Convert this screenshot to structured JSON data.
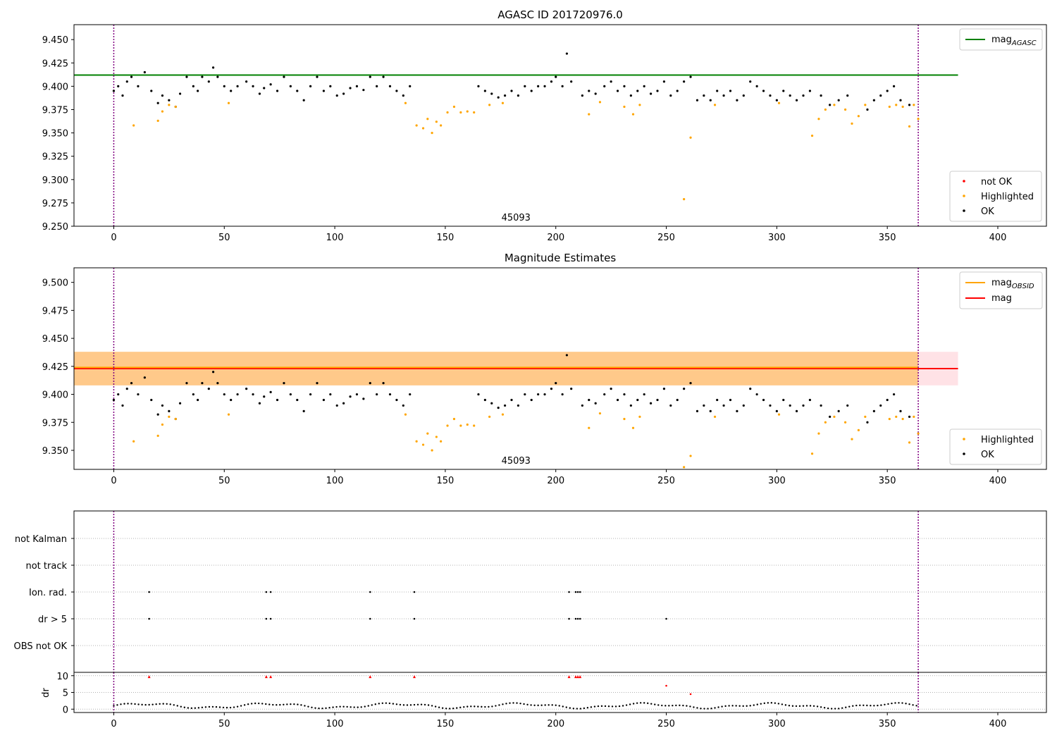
{
  "chart_data": [
    {
      "type": "scatter",
      "title": "AGASC ID 201720976.0",
      "xlim": [
        -18,
        422
      ],
      "ylim": [
        9.25,
        9.466
      ],
      "xticks": [
        0,
        50,
        100,
        150,
        200,
        250,
        300,
        350,
        400
      ],
      "yticks": [
        9.25,
        9.275,
        9.3,
        9.325,
        9.35,
        9.375,
        9.4,
        9.425,
        9.45
      ],
      "ytick_decimals": 3,
      "vlines": [
        0,
        364
      ],
      "hlines": [
        {
          "name": "mag_AGASC",
          "value": 9.412,
          "color": "#008000",
          "xmax": 382
        }
      ],
      "annotation": {
        "text": "45093",
        "x": 182
      },
      "legend_lines": [
        {
          "label": "mag",
          "sub": "AGASC",
          "color": "#008000"
        }
      ],
      "legend_points": [
        {
          "label": "not OK",
          "color": "#ff0000"
        },
        {
          "label": "Highlighted",
          "color": "#ffa500"
        },
        {
          "label": "OK",
          "color": "#000000"
        }
      ],
      "series": [
        {
          "name": "OK",
          "color": "#000000",
          "x": [
            0,
            2,
            4,
            6,
            8,
            11,
            14,
            17,
            20,
            22,
            25,
            28,
            30,
            33,
            36,
            38,
            40,
            43,
            45,
            47,
            50,
            53,
            56,
            60,
            63,
            66,
            68,
            71,
            74,
            77,
            80,
            83,
            86,
            89,
            92,
            95,
            98,
            101,
            104,
            107,
            110,
            113,
            116,
            119,
            122,
            125,
            128,
            131,
            134,
            165,
            168,
            171,
            174,
            177,
            180,
            183,
            186,
            189,
            192,
            195,
            198,
            200,
            203,
            205,
            207,
            212,
            215,
            218,
            222,
            225,
            228,
            231,
            234,
            237,
            240,
            243,
            246,
            249,
            252,
            255,
            258,
            261,
            264,
            267,
            270,
            273,
            276,
            279,
            282,
            285,
            288,
            291,
            294,
            297,
            300,
            303,
            306,
            309,
            312,
            315,
            320,
            324,
            328,
            332,
            341,
            344,
            347,
            350,
            353,
            356,
            360
          ],
          "y": [
            9.395,
            9.4,
            9.39,
            9.405,
            9.41,
            9.4,
            9.415,
            9.395,
            9.382,
            9.39,
            9.385,
            9.378,
            9.392,
            9.41,
            9.4,
            9.395,
            9.41,
            9.405,
            9.42,
            9.41,
            9.4,
            9.395,
            9.4,
            9.405,
            9.4,
            9.392,
            9.398,
            9.402,
            9.395,
            9.41,
            9.4,
            9.395,
            9.385,
            9.4,
            9.41,
            9.395,
            9.4,
            9.39,
            9.392,
            9.398,
            9.4,
            9.396,
            9.41,
            9.4,
            9.41,
            9.4,
            9.395,
            9.39,
            9.4,
            9.4,
            9.395,
            9.392,
            9.388,
            9.39,
            9.395,
            9.39,
            9.4,
            9.395,
            9.4,
            9.4,
            9.405,
            9.41,
            9.4,
            9.435,
            9.405,
            9.39,
            9.395,
            9.392,
            9.4,
            9.405,
            9.395,
            9.4,
            9.39,
            9.395,
            9.4,
            9.392,
            9.395,
            9.405,
            9.39,
            9.395,
            9.405,
            9.41,
            9.385,
            9.39,
            9.385,
            9.395,
            9.39,
            9.395,
            9.385,
            9.39,
            9.405,
            9.4,
            9.395,
            9.39,
            9.385,
            9.395,
            9.39,
            9.385,
            9.39,
            9.395,
            9.39,
            9.38,
            9.385,
            9.39,
            9.375,
            9.385,
            9.39,
            9.395,
            9.4,
            9.385,
            9.38
          ]
        },
        {
          "name": "Highlighted",
          "color": "#ffa500",
          "x": [
            9,
            20,
            22,
            25,
            28,
            52,
            132,
            137,
            140,
            142,
            144,
            146,
            148,
            151,
            154,
            157,
            160,
            163,
            170,
            176,
            215,
            220,
            231,
            235,
            238,
            258,
            261,
            272,
            301,
            316,
            319,
            322,
            326,
            331,
            334,
            337,
            340,
            351,
            354,
            357,
            360,
            362,
            364
          ],
          "y": [
            9.358,
            9.363,
            9.373,
            9.38,
            9.378,
            9.382,
            9.382,
            9.358,
            9.355,
            9.365,
            9.35,
            9.362,
            9.358,
            9.372,
            9.378,
            9.372,
            9.373,
            9.372,
            9.38,
            9.382,
            9.37,
            9.383,
            9.378,
            9.37,
            9.38,
            9.279,
            9.345,
            9.38,
            9.382,
            9.347,
            9.365,
            9.375,
            9.38,
            9.375,
            9.36,
            9.368,
            9.38,
            9.378,
            9.38,
            9.378,
            9.357,
            9.38,
            9.365
          ]
        }
      ]
    },
    {
      "type": "scatter",
      "title": "Magnitude Estimates",
      "xlim": [
        -18,
        422
      ],
      "ylim": [
        9.333,
        9.513
      ],
      "xticks": [
        0,
        50,
        100,
        150,
        200,
        250,
        300,
        350,
        400
      ],
      "yticks": [
        9.35,
        9.375,
        9.4,
        9.425,
        9.45,
        9.475,
        9.5
      ],
      "ytick_decimals": 3,
      "vlines": [
        0,
        364
      ],
      "bands": [
        {
          "name": "mag range",
          "y0": 9.408,
          "y1": 9.438,
          "x0": -18,
          "x1": 382,
          "color": "#ffb6c1"
        },
        {
          "name": "mag_OBSID range",
          "y0": 9.408,
          "y1": 9.438,
          "x0": -18,
          "x1": 364,
          "color": "#ffa500"
        }
      ],
      "hlines": [
        {
          "name": "mag",
          "value": 9.423,
          "color": "#ff0000",
          "xmax": 382
        },
        {
          "name": "mag_OBSID",
          "value": 9.424,
          "color": "#ffa500",
          "xmax": 364
        }
      ],
      "annotation": {
        "text": "45093",
        "x": 182
      },
      "legend_lines": [
        {
          "label": "mag",
          "sub": "OBSID",
          "color": "#ffa500"
        },
        {
          "label": "mag",
          "sub": "",
          "color": "#ff0000"
        }
      ],
      "legend_points": [
        {
          "label": "Highlighted",
          "color": "#ffa500"
        },
        {
          "label": "OK",
          "color": "#000000"
        }
      ]
    }
  ],
  "flags_panel": {
    "categories": [
      "not Kalman",
      "not track",
      "Ion. rad.",
      "dr > 5",
      "OBS not OK"
    ],
    "ion_rad_x": [
      16,
      69,
      71,
      116,
      136,
      206,
      209,
      210,
      211
    ],
    "dr5_x": [
      16,
      69,
      71,
      116,
      136,
      206,
      209,
      210,
      211,
      250
    ],
    "vlines": [
      0,
      364
    ]
  },
  "dr_panel": {
    "ylabel": "dr",
    "ylim": [
      -1,
      11
    ],
    "yticks": [
      0,
      5,
      10
    ],
    "xticks": [
      0,
      50,
      100,
      150,
      200,
      250,
      300,
      350,
      400
    ],
    "high_x": [
      16,
      69,
      71,
      116,
      136,
      206,
      209,
      210,
      211
    ],
    "high_y": [
      9.7,
      9.7,
      9.7,
      9.7,
      9.7,
      9.7,
      9.7,
      9.7,
      9.7
    ],
    "mid_x": [
      250,
      261
    ],
    "mid_y": [
      7,
      4.5
    ]
  }
}
